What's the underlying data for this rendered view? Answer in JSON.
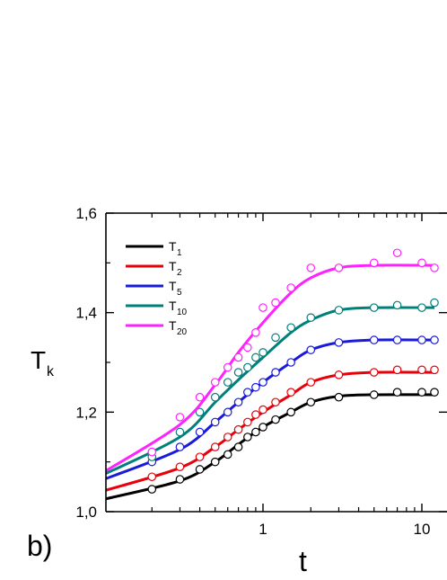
{
  "chart_data": {
    "type": "line",
    "panel_label": "b)",
    "xlabel": "t",
    "ylabel": "T",
    "ylabel_sub": "k",
    "x_scale": "log",
    "xlim": [
      0.1,
      13
    ],
    "ylim": [
      1.0,
      1.6
    ],
    "x_ticks": [
      1,
      10
    ],
    "x_tick_labels": [
      "1",
      "10"
    ],
    "y_ticks": [
      1.0,
      1.2,
      1.4,
      1.6
    ],
    "y_tick_labels": [
      "1,0",
      "1,2",
      "1,4",
      "1,6"
    ],
    "legend_position": "top-left",
    "x_points": [
      0.2,
      0.3,
      0.4,
      0.5,
      0.6,
      0.7,
      0.8,
      0.9,
      1.0,
      1.2,
      1.5,
      2.0,
      3.0,
      5.0,
      7.0,
      10.0,
      12.0
    ],
    "series": [
      {
        "name": "T",
        "sub": "1",
        "color": "#000000",
        "curve": [
          [
            0.1,
            1.025
          ],
          [
            0.3,
            1.062
          ],
          [
            0.5,
            1.1
          ],
          [
            0.7,
            1.135
          ],
          [
            1.0,
            1.17
          ],
          [
            1.5,
            1.2
          ],
          [
            2.0,
            1.22
          ],
          [
            3.0,
            1.232
          ],
          [
            5.0,
            1.235
          ],
          [
            12.0,
            1.235
          ]
        ],
        "points": [
          1.045,
          1.065,
          1.085,
          1.1,
          1.115,
          1.13,
          1.15,
          1.16,
          1.17,
          1.185,
          1.2,
          1.22,
          1.23,
          1.235,
          1.24,
          1.24,
          1.24
        ]
      },
      {
        "name": "T",
        "sub": "2",
        "color": "#e8000b",
        "curve": [
          [
            0.1,
            1.042
          ],
          [
            0.3,
            1.088
          ],
          [
            0.5,
            1.13
          ],
          [
            0.7,
            1.165
          ],
          [
            1.0,
            1.2
          ],
          [
            1.5,
            1.235
          ],
          [
            2.0,
            1.26
          ],
          [
            3.0,
            1.275
          ],
          [
            5.0,
            1.28
          ],
          [
            12.0,
            1.28
          ]
        ],
        "points": [
          1.07,
          1.09,
          1.11,
          1.13,
          1.15,
          1.165,
          1.18,
          1.195,
          1.205,
          1.22,
          1.24,
          1.26,
          1.275,
          1.28,
          1.285,
          1.285,
          1.285
        ]
      },
      {
        "name": "T",
        "sub": "5",
        "color": "#1a1adb",
        "curve": [
          [
            0.1,
            1.065
          ],
          [
            0.3,
            1.125
          ],
          [
            0.5,
            1.18
          ],
          [
            0.7,
            1.22
          ],
          [
            1.0,
            1.26
          ],
          [
            1.5,
            1.3
          ],
          [
            2.0,
            1.325
          ],
          [
            3.0,
            1.34
          ],
          [
            5.0,
            1.345
          ],
          [
            12.0,
            1.345
          ]
        ],
        "points": [
          1.1,
          1.13,
          1.16,
          1.18,
          1.2,
          1.22,
          1.24,
          1.25,
          1.26,
          1.28,
          1.3,
          1.325,
          1.34,
          1.345,
          1.345,
          1.345,
          1.345
        ]
      },
      {
        "name": "T",
        "sub": "10",
        "color": "#00807a",
        "curve": [
          [
            0.1,
            1.075
          ],
          [
            0.3,
            1.15
          ],
          [
            0.5,
            1.22
          ],
          [
            0.7,
            1.265
          ],
          [
            1.0,
            1.31
          ],
          [
            1.5,
            1.36
          ],
          [
            2.0,
            1.385
          ],
          [
            3.0,
            1.405
          ],
          [
            5.0,
            1.41
          ],
          [
            12.0,
            1.41
          ]
        ],
        "points": [
          1.11,
          1.16,
          1.2,
          1.23,
          1.26,
          1.28,
          1.29,
          1.31,
          1.32,
          1.35,
          1.37,
          1.39,
          1.405,
          1.41,
          1.415,
          1.41,
          1.42
        ]
      },
      {
        "name": "T",
        "sub": "20",
        "color": "#ff22ff",
        "curve": [
          [
            0.1,
            1.08
          ],
          [
            0.3,
            1.175
          ],
          [
            0.5,
            1.255
          ],
          [
            0.7,
            1.32
          ],
          [
            1.0,
            1.38
          ],
          [
            1.5,
            1.44
          ],
          [
            2.0,
            1.47
          ],
          [
            3.0,
            1.49
          ],
          [
            5.0,
            1.495
          ],
          [
            12.0,
            1.495
          ]
        ],
        "points": [
          1.12,
          1.19,
          1.23,
          1.26,
          1.29,
          1.31,
          1.33,
          1.36,
          1.41,
          1.42,
          1.45,
          1.49,
          1.49,
          1.5,
          1.52,
          1.5,
          1.49
        ]
      }
    ]
  }
}
